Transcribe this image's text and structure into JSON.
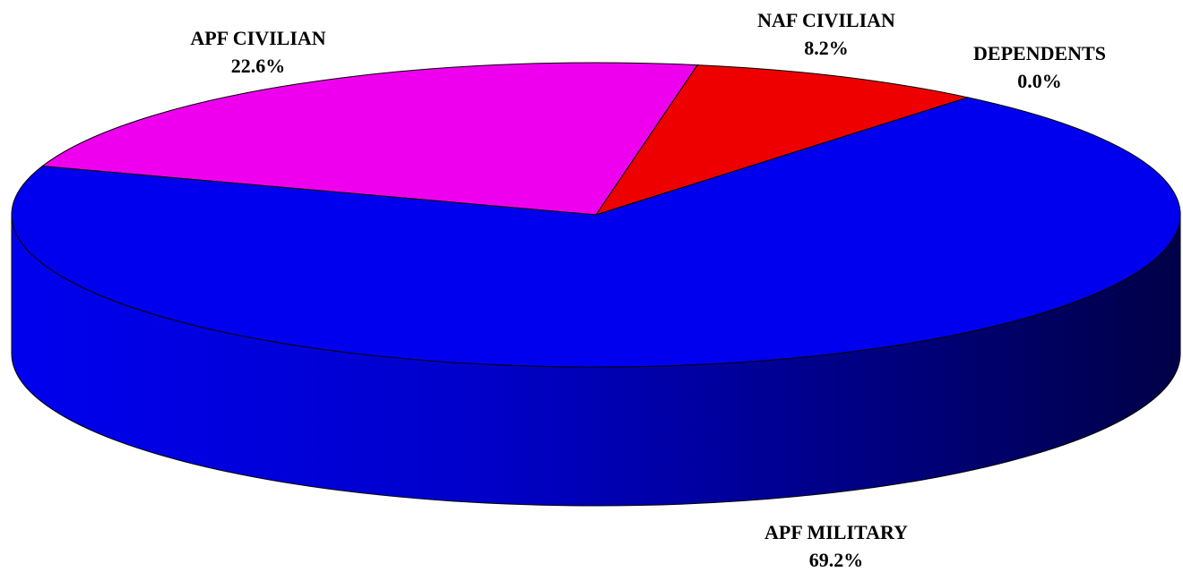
{
  "chart_data": {
    "type": "pie",
    "categories": [
      "APF CIVILIAN",
      "NAF CIVILIAN",
      "DEPENDENTS",
      "APF MILITARY"
    ],
    "values": [
      22.6,
      8.2,
      0.0,
      69.2
    ],
    "value_labels": [
      "22.6%",
      "8.2%",
      "0.0%",
      "69.2%"
    ],
    "colors": [
      "#ee00ee",
      "#ee0000",
      null,
      "#0000ee"
    ],
    "three_d": true
  }
}
